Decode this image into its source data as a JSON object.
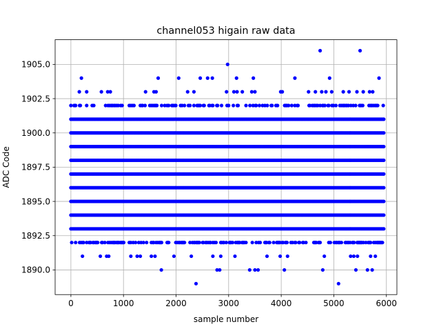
{
  "chart_data": {
    "type": "scatter",
    "title": "channel053 higain raw data",
    "xlabel": "sample number",
    "ylabel": "ADC Code",
    "xlim": [
      -300,
      6200
    ],
    "ylim": [
      1888.2,
      1906.8
    ],
    "xticks": [
      0,
      1000,
      2000,
      3000,
      4000,
      5000,
      6000
    ],
    "xtick_labels": [
      "0",
      "1000",
      "2000",
      "3000",
      "4000",
      "5000",
      "6000"
    ],
    "yticks": [
      1890.0,
      1892.5,
      1895.0,
      1897.5,
      1900.0,
      1902.5,
      1905.0
    ],
    "ytick_labels": [
      "1890.0",
      "1892.5",
      "1895.0",
      "1897.5",
      "1900.0",
      "1902.5",
      "1905.0"
    ],
    "grid": true,
    "marker_color": "#0000ff",
    "x_range": [
      0,
      5950
    ],
    "dense_levels": [
      1893,
      1894,
      1895,
      1896,
      1897,
      1898,
      1899,
      1900,
      1901
    ],
    "sparse_levels": [
      {
        "y": 1892,
        "density": 0.45
      },
      {
        "y": 1902,
        "density": 0.35
      }
    ],
    "outliers": [
      {
        "x": 2380,
        "y": 1889
      },
      {
        "x": 5090,
        "y": 1889
      },
      {
        "x": 1720,
        "y": 1890
      },
      {
        "x": 2780,
        "y": 1890
      },
      {
        "x": 2830,
        "y": 1890
      },
      {
        "x": 3400,
        "y": 1890
      },
      {
        "x": 3500,
        "y": 1890
      },
      {
        "x": 3560,
        "y": 1890
      },
      {
        "x": 4060,
        "y": 1890
      },
      {
        "x": 4790,
        "y": 1890
      },
      {
        "x": 5420,
        "y": 1890
      },
      {
        "x": 5640,
        "y": 1890
      },
      {
        "x": 5730,
        "y": 1890
      },
      {
        "x": 220,
        "y": 1891
      },
      {
        "x": 560,
        "y": 1891
      },
      {
        "x": 680,
        "y": 1891
      },
      {
        "x": 720,
        "y": 1891
      },
      {
        "x": 1140,
        "y": 1891
      },
      {
        "x": 1260,
        "y": 1891
      },
      {
        "x": 1320,
        "y": 1891
      },
      {
        "x": 1530,
        "y": 1891
      },
      {
        "x": 1600,
        "y": 1891
      },
      {
        "x": 1960,
        "y": 1891
      },
      {
        "x": 2290,
        "y": 1891
      },
      {
        "x": 2700,
        "y": 1891
      },
      {
        "x": 2850,
        "y": 1891
      },
      {
        "x": 3120,
        "y": 1891
      },
      {
        "x": 3730,
        "y": 1891
      },
      {
        "x": 3980,
        "y": 1891
      },
      {
        "x": 4120,
        "y": 1891
      },
      {
        "x": 4820,
        "y": 1891
      },
      {
        "x": 5320,
        "y": 1891
      },
      {
        "x": 5380,
        "y": 1891
      },
      {
        "x": 5450,
        "y": 1891
      },
      {
        "x": 5700,
        "y": 1891
      },
      {
        "x": 5790,
        "y": 1891
      },
      {
        "x": 160,
        "y": 1903
      },
      {
        "x": 300,
        "y": 1903
      },
      {
        "x": 580,
        "y": 1903
      },
      {
        "x": 700,
        "y": 1903
      },
      {
        "x": 750,
        "y": 1903
      },
      {
        "x": 1420,
        "y": 1903
      },
      {
        "x": 1580,
        "y": 1903
      },
      {
        "x": 1620,
        "y": 1903
      },
      {
        "x": 2220,
        "y": 1903
      },
      {
        "x": 2340,
        "y": 1903
      },
      {
        "x": 2960,
        "y": 1903
      },
      {
        "x": 3100,
        "y": 1903
      },
      {
        "x": 3160,
        "y": 1903
      },
      {
        "x": 3260,
        "y": 1903
      },
      {
        "x": 3440,
        "y": 1903
      },
      {
        "x": 3500,
        "y": 1903
      },
      {
        "x": 3990,
        "y": 1903
      },
      {
        "x": 4020,
        "y": 1903
      },
      {
        "x": 4520,
        "y": 1903
      },
      {
        "x": 4650,
        "y": 1903
      },
      {
        "x": 4770,
        "y": 1903
      },
      {
        "x": 4850,
        "y": 1903
      },
      {
        "x": 4960,
        "y": 1903
      },
      {
        "x": 5180,
        "y": 1903
      },
      {
        "x": 5290,
        "y": 1903
      },
      {
        "x": 5440,
        "y": 1903
      },
      {
        "x": 5560,
        "y": 1903
      },
      {
        "x": 5680,
        "y": 1903
      },
      {
        "x": 5740,
        "y": 1903
      },
      {
        "x": 200,
        "y": 1904
      },
      {
        "x": 1660,
        "y": 1904
      },
      {
        "x": 2050,
        "y": 1904
      },
      {
        "x": 2460,
        "y": 1904
      },
      {
        "x": 2600,
        "y": 1904
      },
      {
        "x": 2690,
        "y": 1904
      },
      {
        "x": 3150,
        "y": 1904
      },
      {
        "x": 3470,
        "y": 1904
      },
      {
        "x": 4260,
        "y": 1904
      },
      {
        "x": 4920,
        "y": 1904
      },
      {
        "x": 5860,
        "y": 1904
      },
      {
        "x": 2980,
        "y": 1905
      },
      {
        "x": 4740,
        "y": 1906
      },
      {
        "x": 5500,
        "y": 1906
      }
    ]
  }
}
